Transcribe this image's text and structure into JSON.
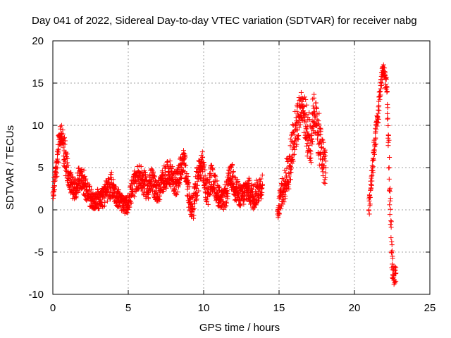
{
  "chart_data": {
    "type": "scatter",
    "title": "Day 041 of 2022, Sidereal Day-to-day VTEC variation (SDTVAR) for receiver nabg",
    "xlabel": "GPS time / hours",
    "ylabel": "SDTVAR / TECUs",
    "xlim": [
      0,
      25
    ],
    "ylim": [
      -10,
      20
    ],
    "xticks": [
      0,
      5,
      10,
      15,
      20,
      25
    ],
    "yticks": [
      -10,
      -5,
      0,
      5,
      10,
      15,
      20
    ],
    "xtick_labels": [
      "0",
      "5",
      "10",
      "15",
      "20",
      "25"
    ],
    "ytick_labels": [
      "-10",
      "-5",
      "0",
      "5",
      "10",
      "15",
      "20"
    ],
    "grid": true,
    "marker": "+",
    "series_color": "#ff0000",
    "segments": [
      {
        "x": [
          0.0,
          0.15,
          0.3,
          0.45,
          0.6,
          0.75,
          0.9,
          1.05,
          1.2,
          1.35,
          1.5,
          1.7,
          1.9,
          2.1,
          2.3,
          2.5,
          2.7,
          2.9,
          3.1,
          3.3,
          3.5,
          3.7,
          3.9,
          4.1,
          4.3,
          4.5,
          4.7,
          4.9,
          5.1,
          5.3,
          5.5,
          5.7,
          5.9,
          6.1,
          6.3,
          6.5,
          6.7,
          6.9,
          7.1,
          7.3,
          7.5,
          7.7,
          7.9,
          8.1,
          8.3,
          8.5,
          8.7,
          8.9,
          9.1,
          9.3,
          9.5,
          9.7,
          9.9,
          10.1,
          10.3,
          10.5,
          10.7,
          10.9,
          11.1,
          11.3,
          11.5,
          11.7,
          11.9,
          12.1,
          12.3,
          12.5,
          12.7,
          12.9,
          13.1,
          13.3,
          13.5,
          13.7,
          13.9
        ],
        "y": [
          2.0,
          3.5,
          6.0,
          8.5,
          9.0,
          7.0,
          5.0,
          4.0,
          3.0,
          2.5,
          2.5,
          3.5,
          4.0,
          3.0,
          2.0,
          1.5,
          1.0,
          1.5,
          1.0,
          1.5,
          2.0,
          2.5,
          3.0,
          2.0,
          1.5,
          1.0,
          0.5,
          0.5,
          1.5,
          2.5,
          3.5,
          4.0,
          3.5,
          3.0,
          2.5,
          3.5,
          3.0,
          2.0,
          2.5,
          3.5,
          4.0,
          4.5,
          4.0,
          3.0,
          3.5,
          5.0,
          6.0,
          3.0,
          1.0,
          0.0,
          2.5,
          4.5,
          5.5,
          3.0,
          2.0,
          4.0,
          3.0,
          2.0,
          1.5,
          1.0,
          2.0,
          3.5,
          4.0,
          2.5,
          2.0,
          1.5,
          2.0,
          2.5,
          2.0,
          1.5,
          2.0,
          2.5,
          3.0
        ],
        "spread": [
          0.8,
          1.5,
          2.0,
          1.5,
          1.0,
          2.0,
          2.0,
          1.5,
          1.5,
          1.2,
          1.2,
          1.5,
          1.5,
          1.5,
          1.2,
          1.2,
          1.0,
          1.2,
          1.0,
          1.2,
          1.5,
          1.5,
          1.5,
          1.2,
          1.2,
          1.0,
          1.0,
          1.0,
          1.2,
          1.5,
          1.5,
          1.5,
          1.5,
          1.5,
          1.5,
          1.5,
          1.5,
          1.2,
          1.5,
          1.5,
          1.5,
          1.5,
          1.5,
          1.5,
          1.5,
          1.5,
          1.2,
          2.0,
          1.5,
          1.5,
          2.0,
          2.0,
          1.5,
          2.0,
          1.5,
          1.5,
          1.5,
          1.5,
          1.2,
          1.2,
          1.5,
          1.5,
          1.5,
          1.5,
          1.5,
          1.2,
          1.5,
          1.5,
          1.5,
          1.5,
          1.5,
          1.5,
          1.5
        ]
      },
      {
        "x": [
          14.9,
          15.1,
          15.3,
          15.5,
          15.7,
          15.9,
          16.1,
          16.3,
          16.5,
          16.7,
          16.9,
          17.1,
          17.3,
          17.5,
          17.7,
          17.9,
          18.1
        ],
        "y": [
          -0.5,
          1.5,
          2.5,
          4.0,
          5.0,
          8.0,
          9.5,
          11.0,
          12.5,
          11.0,
          9.0,
          8.0,
          12.0,
          10.0,
          8.0,
          6.0,
          5.0
        ],
        "spread": [
          0.8,
          1.5,
          2.0,
          2.0,
          2.5,
          3.0,
          2.5,
          2.5,
          1.5,
          2.5,
          3.0,
          3.5,
          2.0,
          2.5,
          3.0,
          2.5,
          2.5
        ]
      },
      {
        "x": [
          20.95,
          21.1,
          21.25,
          21.4,
          21.55,
          21.7,
          21.85,
          22.0,
          22.15,
          22.3,
          22.45,
          22.6,
          22.75
        ],
        "y": [
          0.0,
          3.0,
          6.0,
          8.5,
          11.0,
          14.0,
          16.5,
          16.0,
          14.0,
          5.0,
          -5.0,
          -8.0,
          -7.5
        ],
        "spread": [
          1.0,
          1.5,
          1.5,
          1.5,
          1.5,
          1.0,
          1.0,
          1.0,
          1.0,
          3.0,
          2.5,
          1.0,
          1.0
        ]
      }
    ]
  }
}
